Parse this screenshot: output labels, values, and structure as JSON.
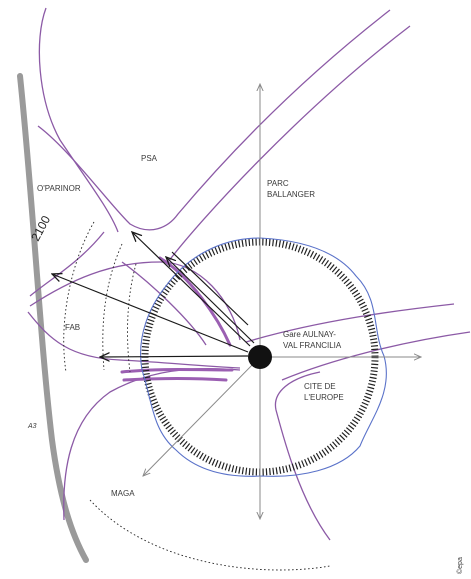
{
  "labels": {
    "psa": "PSA",
    "oparinor": "O'PARINOR",
    "parc_line1": "PARC",
    "parc_line2": "BALLANGER",
    "fab": "FAB",
    "gare_line1": "Gare AULNAY-",
    "gare_line2": "VAL FRANCILIA",
    "cite_line1": "CITE DE",
    "cite_line2": "L'EUROPE",
    "maga": "MAGA",
    "a3": "A3",
    "distance": "2100",
    "credit": "©epa"
  },
  "colors": {
    "road": "#8c5aa6",
    "road_bold": "#9b5fb2",
    "ring_blue": "#5a72c9",
    "axis": "#8a8a8a",
    "arrow": "#1a1a1a",
    "highway": "#9a9a9a",
    "dots": "#222222"
  }
}
